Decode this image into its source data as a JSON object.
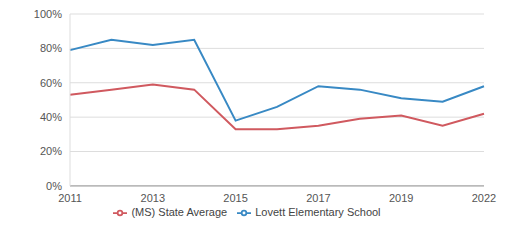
{
  "chart_data": {
    "type": "line",
    "categories": [
      2011,
      null,
      2013,
      null,
      2015,
      null,
      2017,
      null,
      2019,
      null,
      2022
    ],
    "series": [
      {
        "name": "Lovett Elementary School",
        "color": "#3889c4",
        "values": [
          79,
          85,
          82,
          85,
          38,
          46,
          58,
          56,
          51,
          49,
          58
        ]
      },
      {
        "name": "(MS) State Average",
        "color": "#d0595f",
        "values": [
          53,
          56,
          59,
          56,
          33,
          33,
          35,
          39,
          41,
          35,
          42
        ]
      }
    ],
    "ylim": [
      0,
      100
    ],
    "yticks": [
      {
        "value": 0,
        "label": "0%"
      },
      {
        "value": 20,
        "label": "20%"
      },
      {
        "value": 40,
        "label": "40%"
      },
      {
        "value": 60,
        "label": "60%"
      },
      {
        "value": 80,
        "label": "80%"
      },
      {
        "value": 100,
        "label": "100%"
      }
    ],
    "grid": true,
    "legend": "bottom"
  }
}
